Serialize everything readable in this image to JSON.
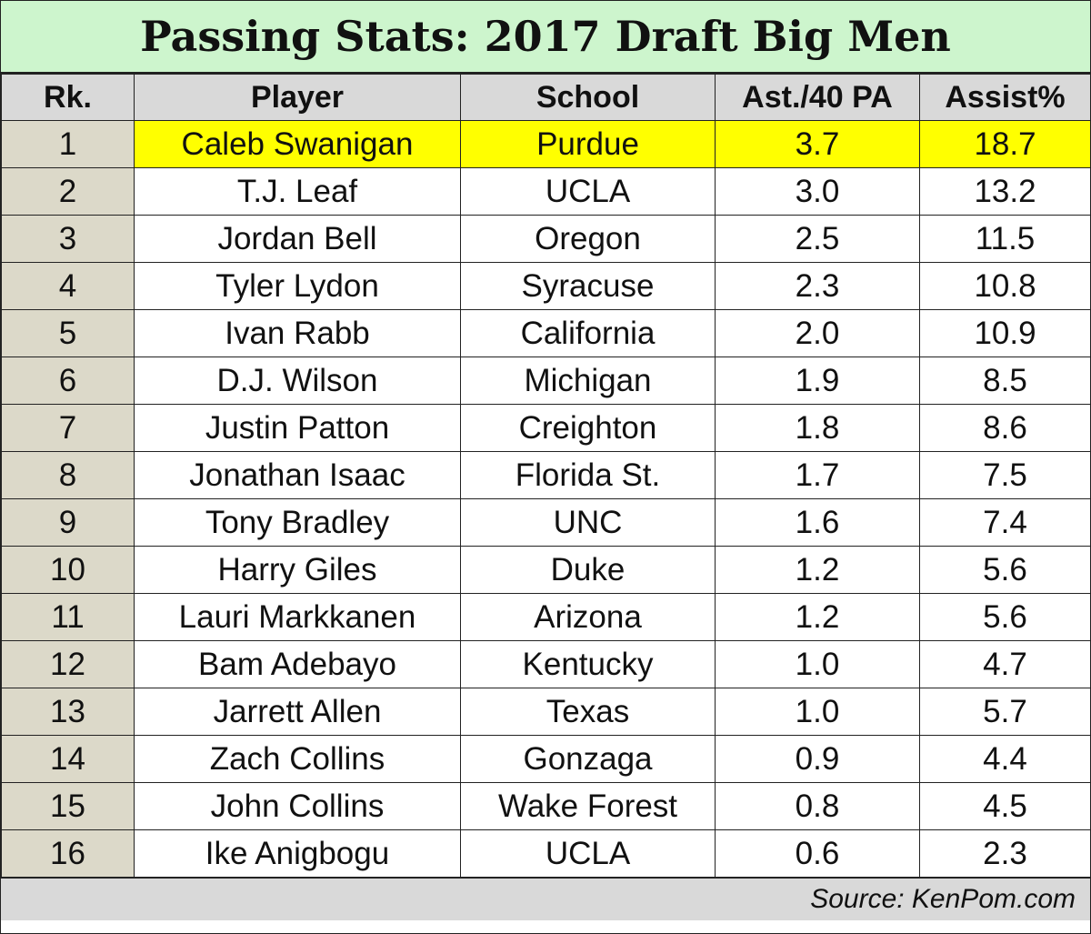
{
  "chart_data": {
    "type": "table",
    "title": "Passing Stats: 2017 Draft Big Men",
    "columns": [
      "Rk.",
      "Player",
      "School",
      "Ast./40 PA",
      "Assist%"
    ],
    "rows": [
      [
        "1",
        "Caleb Swanigan",
        "Purdue",
        "3.7",
        "18.7"
      ],
      [
        "2",
        "T.J. Leaf",
        "UCLA",
        "3.0",
        "13.2"
      ],
      [
        "3",
        "Jordan Bell",
        "Oregon",
        "2.5",
        "11.5"
      ],
      [
        "4",
        "Tyler Lydon",
        "Syracuse",
        "2.3",
        "10.8"
      ],
      [
        "5",
        "Ivan Rabb",
        "California",
        "2.0",
        "10.9"
      ],
      [
        "6",
        "D.J. Wilson",
        "Michigan",
        "1.9",
        "8.5"
      ],
      [
        "7",
        "Justin Patton",
        "Creighton",
        "1.8",
        "8.6"
      ],
      [
        "8",
        "Jonathan Isaac",
        "Florida St.",
        "1.7",
        "7.5"
      ],
      [
        "9",
        "Tony Bradley",
        "UNC",
        "1.6",
        "7.4"
      ],
      [
        "10",
        "Harry Giles",
        "Duke",
        "1.2",
        "5.6"
      ],
      [
        "11",
        "Lauri Markkanen",
        "Arizona",
        "1.2",
        "5.6"
      ],
      [
        "12",
        "Bam Adebayo",
        "Kentucky",
        "1.0",
        "4.7"
      ],
      [
        "13",
        "Jarrett Allen",
        "Texas",
        "1.0",
        "5.7"
      ],
      [
        "14",
        "Zach Collins",
        "Gonzaga",
        "0.9",
        "4.4"
      ],
      [
        "15",
        "John Collins",
        "Wake Forest",
        "0.8",
        "4.5"
      ],
      [
        "16",
        "Ike Anigbogu",
        "UCLA",
        "0.6",
        "2.3"
      ]
    ],
    "highlighted_row": 0,
    "source": "Source: KenPom.com",
    "colors": {
      "title_bg": "#cdf5cd",
      "header_bg": "#d9d9d9",
      "rank_bg": "#dcd9c9",
      "highlight": "#ffff00"
    }
  }
}
